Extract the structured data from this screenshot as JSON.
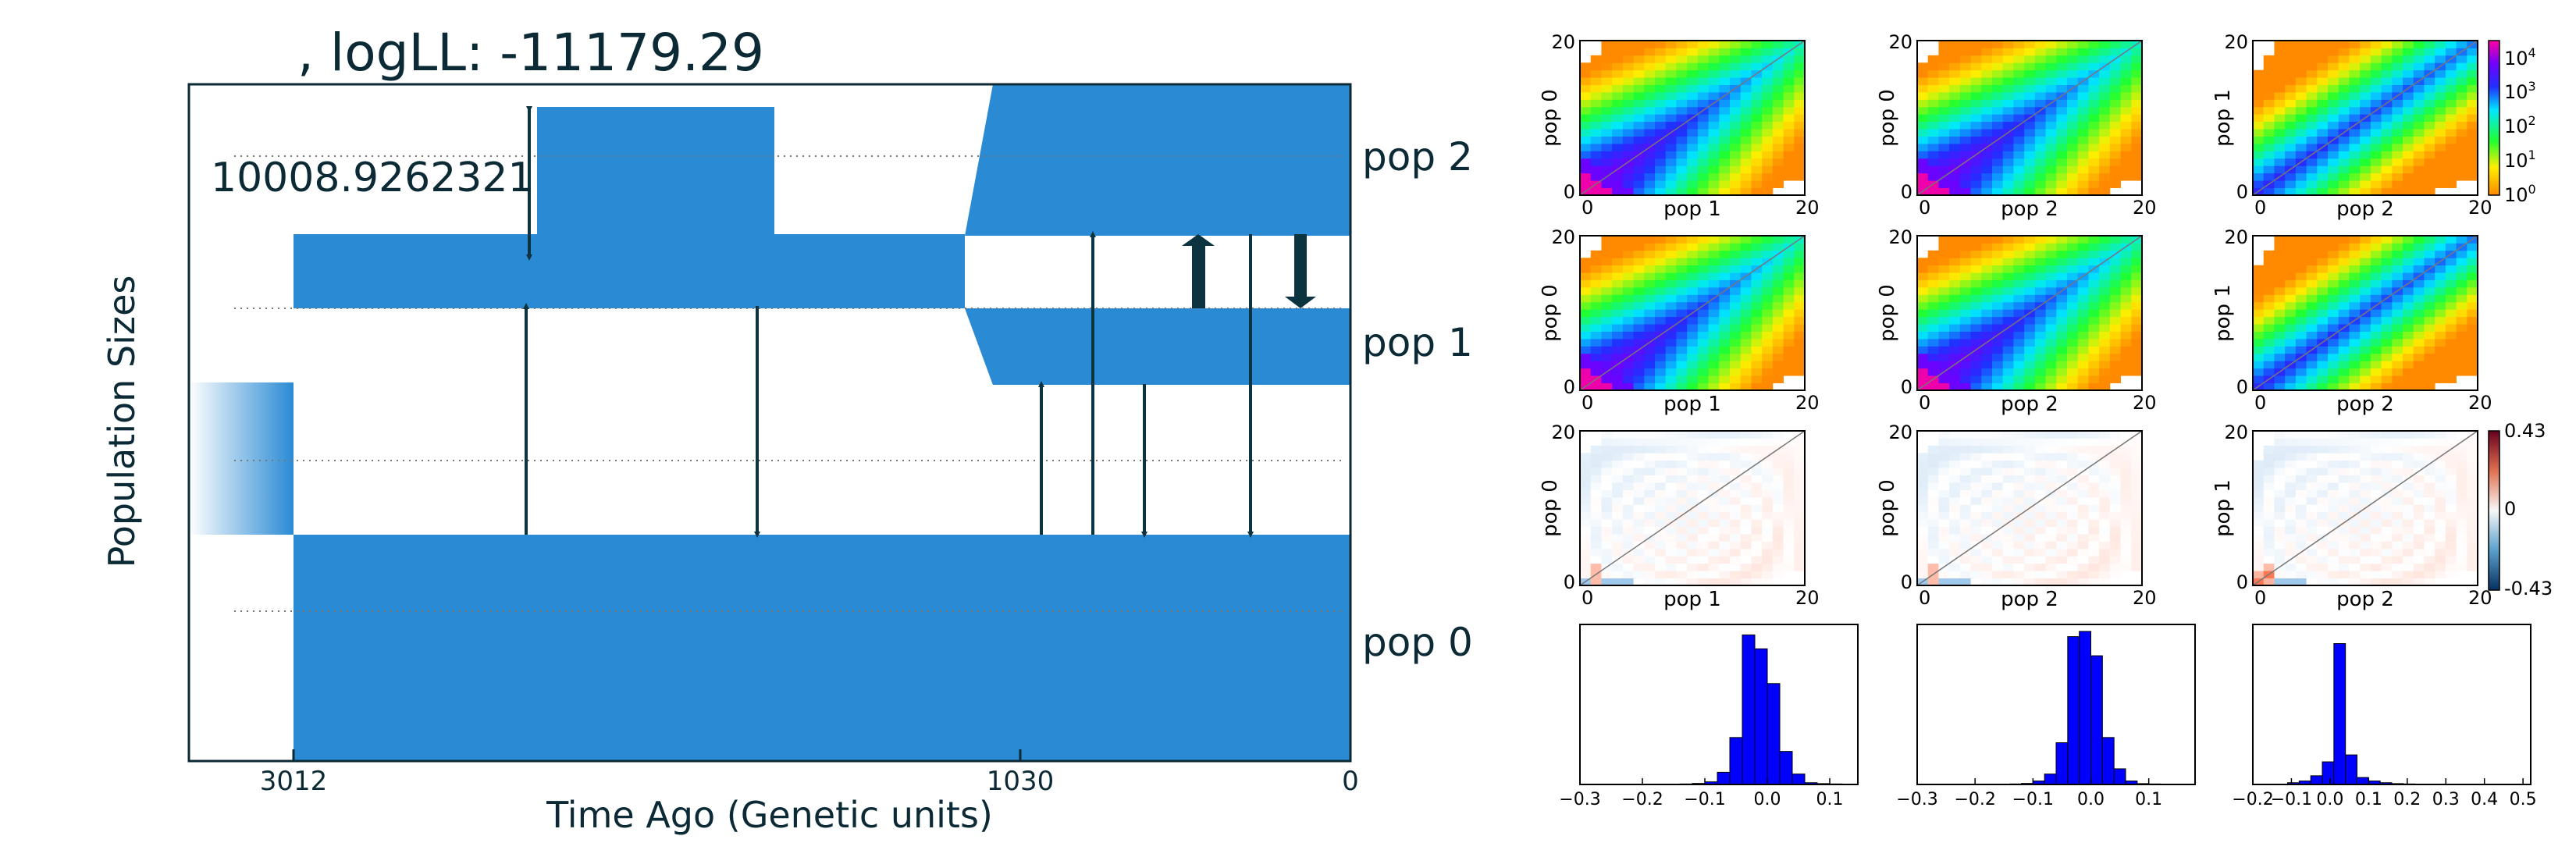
{
  "chart_data": [
    {
      "type": "demography",
      "title": ", logLL:  -11179.29",
      "xlabel": "Time Ago (Genetic units)",
      "ylabel": "Population Sizes",
      "x_ticks": [
        "3012",
        "1030",
        "0"
      ],
      "scale_label": "10008.9262321",
      "populations": [
        {
          "name": "pop 0"
        },
        {
          "name": "pop 1"
        },
        {
          "name": "pop 2"
        }
      ],
      "fill_color": "#2a8ad4",
      "arrow_color": "#0c3440"
    },
    {
      "type": "heatmap",
      "panels": [
        {
          "id": "r1c1",
          "ylabel": "pop 0",
          "xlabel": "pop 1",
          "ticks": [
            "0",
            "20"
          ]
        },
        {
          "id": "r1c2",
          "ylabel": "pop 0",
          "xlabel": "pop 2",
          "ticks": [
            "0",
            "20"
          ]
        },
        {
          "id": "r1c3",
          "ylabel": "pop 1",
          "xlabel": "pop 2",
          "ticks": [
            "0",
            "20"
          ]
        },
        {
          "id": "r2c1",
          "ylabel": "pop 0",
          "xlabel": "pop 1",
          "ticks": [
            "0",
            "20"
          ]
        },
        {
          "id": "r2c2",
          "ylabel": "pop 0",
          "xlabel": "pop 2",
          "ticks": [
            "0",
            "20"
          ]
        },
        {
          "id": "r2c3",
          "ylabel": "pop 1",
          "xlabel": "pop 2",
          "ticks": [
            "0",
            "20"
          ]
        },
        {
          "id": "r3c1",
          "ylabel": "pop 0",
          "xlabel": "pop 1",
          "ticks": [
            "0",
            "20"
          ]
        },
        {
          "id": "r3c2",
          "ylabel": "pop 0",
          "xlabel": "pop 2",
          "ticks": [
            "0",
            "20"
          ]
        },
        {
          "id": "r3c3",
          "ylabel": "pop 1",
          "xlabel": "pop 2",
          "ticks": [
            "0",
            "20"
          ]
        }
      ],
      "log_colorbar": {
        "base": "10",
        "exponents": [
          "4",
          "3",
          "2",
          "1",
          "0"
        ]
      },
      "residual_colorbar": {
        "ticks": [
          "0.43",
          "0",
          "-0.43"
        ]
      }
    },
    {
      "type": "bar",
      "subtype": "histogram",
      "bar_color": "#0000ff",
      "panels": [
        {
          "x_ticks": [
            -0.3,
            -0.2,
            -0.1,
            0.0,
            0.1
          ],
          "x_tick_labels": [
            "−0.3",
            "−0.2",
            "−0.1",
            "0.0",
            "0.1"
          ],
          "xlim": [
            -0.3,
            0.145
          ],
          "bin_width": 0.02,
          "bin_start": -0.26,
          "counts": [
            0.2,
            0,
            0,
            0,
            0,
            0,
            0.3,
            0.6,
            1.5,
            7,
            27,
            86,
            78,
            58,
            19,
            6,
            1,
            0.5,
            0.3,
            0.2
          ],
          "ymax": 92
        },
        {
          "x_ticks": [
            -0.3,
            -0.2,
            -0.1,
            0.0,
            0.1
          ],
          "x_tick_labels": [
            "−0.3",
            "−0.2",
            "−0.1",
            "0.0",
            "0.1"
          ],
          "xlim": [
            -0.3,
            0.18
          ],
          "bin_width": 0.02,
          "bin_start": -0.26,
          "counts": [
            0.2,
            0,
            0,
            0,
            0,
            0,
            0.3,
            0.6,
            2,
            6,
            24,
            85,
            88,
            74,
            27,
            9,
            2,
            0.5,
            0.3,
            0.2
          ],
          "ymax": 92
        },
        {
          "x_ticks": [
            -0.2,
            -0.1,
            0.0,
            0.1,
            0.2,
            0.3,
            0.4,
            0.5
          ],
          "x_tick_labels": [
            "−0.2",
            "−0.1",
            "0.0",
            "0.1",
            "0.2",
            "0.3",
            "0.4",
            "0.5"
          ],
          "xlim": [
            -0.2,
            0.52
          ],
          "bin_width": 0.03,
          "bin_start": -0.11,
          "counts": [
            1,
            2,
            5,
            13,
            81,
            17,
            4,
            2,
            1,
            0.5,
            0.3
          ],
          "ymax": 92
        }
      ]
    }
  ]
}
